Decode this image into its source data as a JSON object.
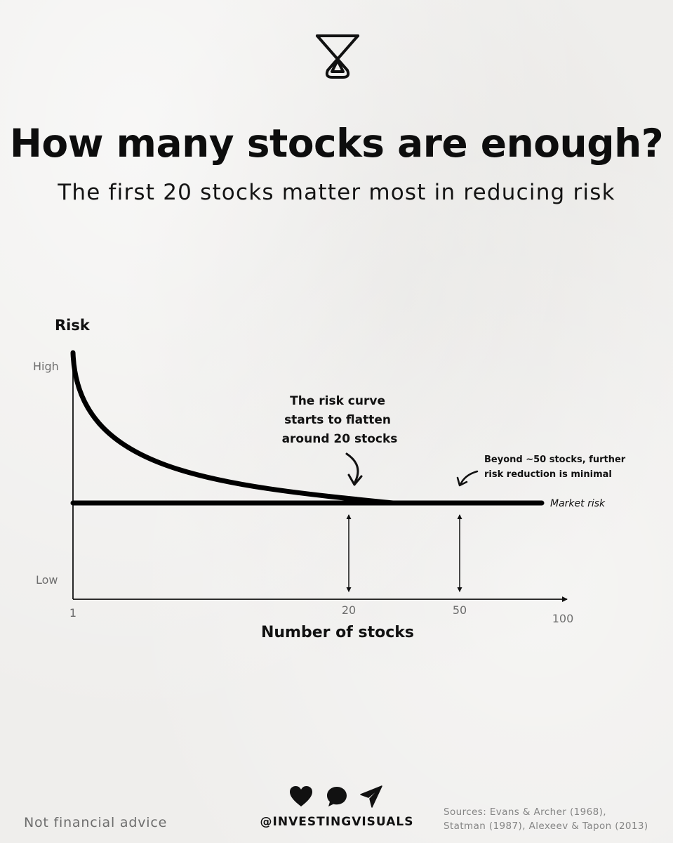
{
  "header": {
    "logo_icon": "hourglass-logo-icon",
    "title": "How many stocks are enough?",
    "subtitle": "The first 20 stocks matter most in reducing risk"
  },
  "chart_data": {
    "type": "line",
    "ylabel": "Risk",
    "xlabel": "Number of stocks",
    "y_tick_labels": [
      "High",
      "Low"
    ],
    "x_tick_labels": [
      "1",
      "20",
      "50",
      "100"
    ],
    "x_ticks": [
      1,
      20,
      50,
      100
    ],
    "xlim": [
      1,
      100
    ],
    "series": [
      {
        "name": "",
        "x": [
          1,
          2,
          3,
          5,
          8,
          10,
          15,
          20,
          25,
          30,
          40,
          50,
          60,
          80,
          100
        ],
        "y": [
          0.98,
          0.86,
          0.79,
          0.7,
          0.6,
          0.55,
          0.45,
          0.38,
          0.32,
          0.27,
          0.21,
          0.18,
          0.17,
          0.165,
          0.16
        ]
      }
    ],
    "market_risk": {
      "label": "Market risk",
      "value": 0.16
    },
    "annotations": [
      {
        "id": "flatten",
        "lines": [
          "The risk curve",
          "starts to flatten",
          "around 20 stocks"
        ],
        "x": 20
      },
      {
        "id": "beyond",
        "lines": [
          "Beyond ~50 stocks, further",
          "risk reduction is minimal"
        ],
        "x": 50
      }
    ],
    "grid": false,
    "legend": "none",
    "colors": {
      "line": "#000000",
      "text": "#111111",
      "muted": "#6e6e6e"
    }
  },
  "footer": {
    "disclaimer": "Not financial advice",
    "handle": "@INVESTINGVISUALS",
    "sources": [
      "Sources: Evans & Archer (1968),",
      "Statman (1987), Alexeev & Tapon (2013)"
    ],
    "icons": [
      "heart-icon",
      "comment-icon",
      "share-icon"
    ]
  }
}
